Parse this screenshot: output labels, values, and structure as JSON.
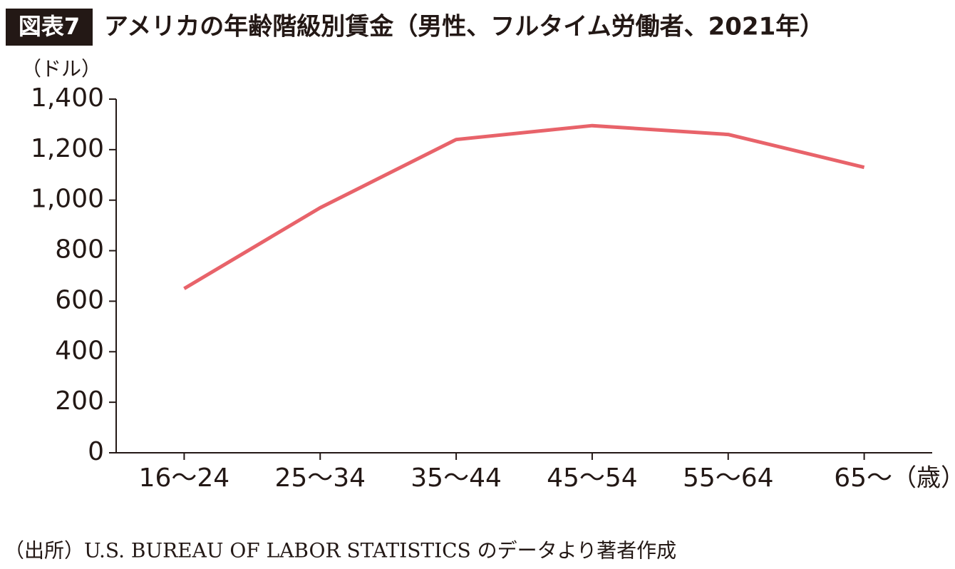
{
  "chart_data": {
    "type": "line",
    "figure_label": "図表7",
    "title": "アメリカの年齢階級別賃金（男性、フルタイム労働者、2021年）",
    "y_unit": "（ドル）",
    "x_unit": "（歳）",
    "source": "（出所）U.S. BUREAU OF LABOR STATISTICS のデータより著者作成",
    "categories": [
      "16～24",
      "25～34",
      "35～44",
      "45～54",
      "55～64",
      "65～"
    ],
    "values": [
      650,
      970,
      1240,
      1295,
      1260,
      1130
    ],
    "color": "#e8636a",
    "ylim": [
      0,
      1400
    ],
    "yticks": [
      0,
      200,
      400,
      600,
      800,
      {
        "value": 1000,
        "label": "1,000"
      },
      {
        "value": 1200,
        "label": "1,200"
      },
      {
        "value": 1400,
        "label": "1,400"
      }
    ],
    "grid": false
  }
}
